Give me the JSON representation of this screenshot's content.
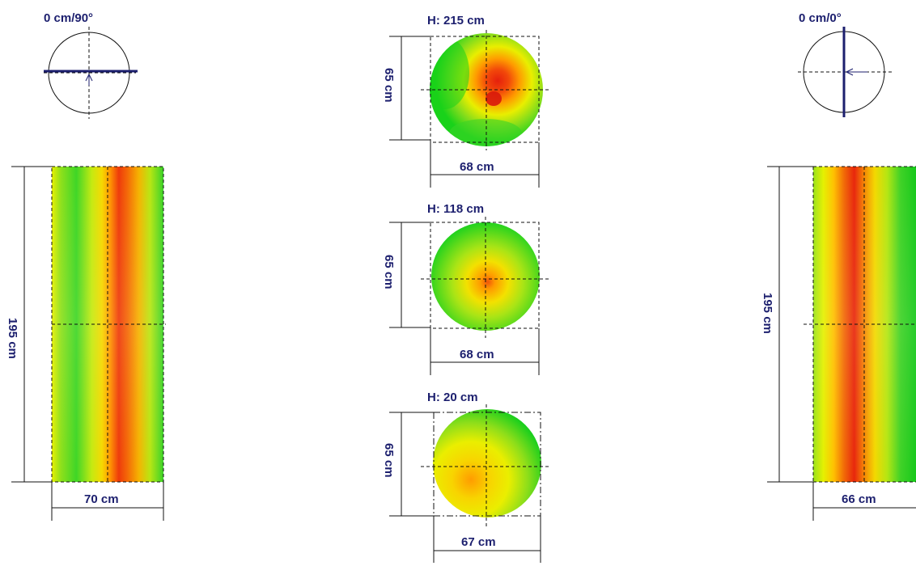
{
  "colors": {
    "label": "#1c1f6e",
    "axis": "#1c1f6e",
    "heat_green": "#19d21a",
    "heat_yellow": "#f2ef00",
    "heat_orange": "#ff9a00",
    "heat_red": "#e8260c"
  },
  "left_view": {
    "orientation_label": "0 cm/90°",
    "height_label": "195 cm",
    "width_label": "70 cm"
  },
  "right_view": {
    "orientation_label": "0 cm/0°",
    "height_label": "195 cm",
    "width_label": "66 cm"
  },
  "sections": [
    {
      "height_label": "H: 215 cm",
      "side_label": "65 cm",
      "width_label": "68 cm"
    },
    {
      "height_label": "H: 118 cm",
      "side_label": "65 cm",
      "width_label": "68 cm"
    },
    {
      "height_label": "H: 20 cm",
      "side_label": "65 cm",
      "width_label": "67 cm"
    }
  ]
}
